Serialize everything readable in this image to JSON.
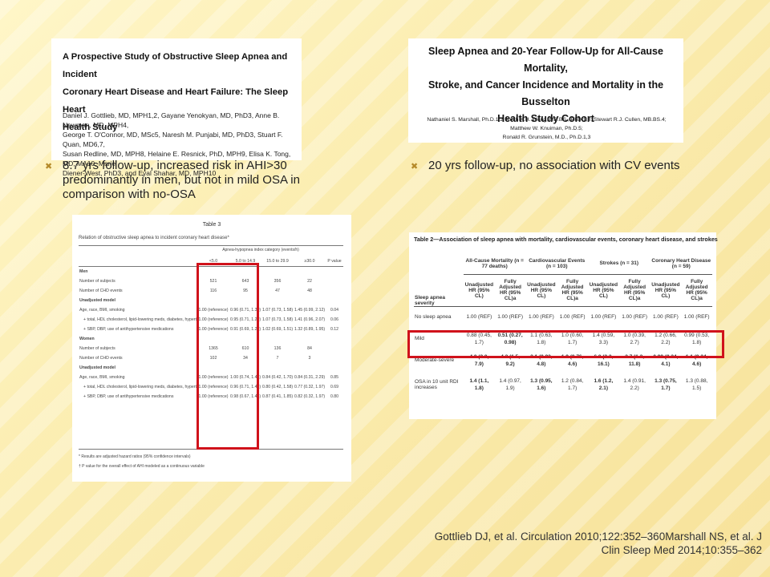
{
  "slide": {
    "paper1": {
      "title_lines": [
        "A Prospective Study of Obstructive Sleep Apnea and Incident",
        "Coronary Heart Disease and Heart Failure: The Sleep Heart",
        "Health Study"
      ],
      "authors": [
        "Daniel J. Gottlieb, MD, MPH1,2, Gayane Yenokyan, MD, PhD3, Anne B. Newman, MD, MPH4,",
        "George T. O'Connor, MD, MSc5, Naresh M. Punjabi, MD, PhD3, Stuart F. Quan, MD6,7,",
        "Susan Redline, MD, MPH8, Helaine E. Resnick, PhD, MPH9, Elisa K. Tong, MD, MA10, Marie",
        "Diener-West, PhD3, and Eyal Shahar, MD, MPH10"
      ]
    },
    "paper2": {
      "title_lines": [
        "Sleep Apnea and 20-Year Follow-Up for All-Cause Mortality,",
        "Stroke, and Cancer Incidence and Mortality in the Busselton",
        "Health Study Cohort"
      ],
      "authors": [
        "Nathaniel S. Marshall, Ph.D.1,2; Keith K.H. Wong, MB.BS., PhD.1,3; Stewart R.J. Cullen, MB.BS.4; Matthew W. Knuiman, Ph.D.5;",
        "Ronald R. Grunstein, M.D., Ph.D.1,3"
      ]
    },
    "bullet_left": [
      "8.7 yrs follow-up, increased risk in AHI>30",
      "predominantly in men, but not in mild OSA in",
      "comparison with no-OSA"
    ],
    "bullet_right": "20 yrs follow-up, no association with CV events",
    "bullet_icon": "x-mark-icon",
    "table3": {
      "title": "Table 3",
      "caption": "Relation of obstructive sleep apnea to incident coronary heart disease*",
      "group_header": "Apnea-hypopnea index category (events/h)",
      "columns": [
        "<5.0",
        "5.0 to 14.9",
        "15.0 to 29.9",
        "≥30.0",
        "P value"
      ],
      "rows": [
        [
          "Men",
          "",
          "",
          "",
          "",
          ""
        ],
        [
          "Number of subjects",
          "521",
          "643",
          "356",
          "22",
          ""
        ],
        [
          "Number of CHD events",
          "116",
          "95",
          "47",
          "48",
          ""
        ],
        [
          "Unadjusted model",
          "",
          "",
          "",
          "",
          ""
        ],
        [
          "Age, race, BMI, smoking",
          "1.00 (reference)",
          "0.96 (0.71, 1.30)",
          "1.07 (0.73, 1.58)",
          "1.45 (0.99, 2.12)",
          "0.04"
        ],
        [
          "+ total, HDL cholesterol, lipid-lowering meds, diabetes, hypertension",
          "1.00 (reference)",
          "0.95 (0.71, 1.29)",
          "1.07 (0.73, 1.58)",
          "1.41 (0.96, 2.07)",
          "0.06"
        ],
        [
          "+ SBP, DBP, use of antihypertensive medications",
          "1.00 (reference)",
          "0.91 (0.69, 1.23)",
          "1.02 (0.69, 1.51)",
          "1.32 (0.89, 1.95)",
          "0.12"
        ],
        [
          "Women",
          "",
          "",
          "",
          "",
          ""
        ],
        [
          "Number of subjects",
          "1365",
          "610",
          "136",
          "84",
          ""
        ],
        [
          "Number of CHD events",
          "102",
          "34",
          "7",
          "3",
          ""
        ],
        [
          "Unadjusted model",
          "",
          "",
          "",
          "",
          ""
        ],
        [
          "Age, race, BMI, smoking",
          "1.00 (reference)",
          "1.00 (0.74, 1.45)",
          "0.84 (0.42, 1.70)",
          "0.84 (0.31, 2.29)",
          "0.85"
        ],
        [
          "+ total, HDL cholesterol, lipid-lowering meds, diabetes, hypertension",
          "1.00 (reference)",
          "0.96 (0.71, 1.43)",
          "0.80 (0.42, 1.58)",
          "0.77 (0.32, 1.97)",
          "0.69"
        ],
        [
          "+ SBP, DBP, use of antihypertensive medications",
          "1.00 (reference)",
          "0.98 (0.67, 1.44)",
          "0.87 (0.41, 1.85)",
          "0.82 (0.32, 1.97)",
          "0.80"
        ]
      ],
      "footnotes": [
        "* Results are adjusted hazard ratios (95% confidence intervals)",
        "† P value for the overall effect of AHI modeled as a continuous variable"
      ]
    },
    "table2": {
      "title": "Table 2—Association of sleep apnea with mortality, cardiovascular events, coronary heart disease, and strokes",
      "groups": [
        "All-Cause Mortality (n = 77 deaths)",
        "Cardiovascular Events (n = 103)",
        "Strokes (n = 31)",
        "Coronary Heart Disease (n = 59)"
      ],
      "subheaders": [
        "Unadjusted HR (95% CL)",
        "Fully Adjusted HR (95% CL)a"
      ],
      "row_label_header": "Sleep apnea severity",
      "rows": [
        {
          "label": "No sleep apnea",
          "values": [
            "1.00 (REF)",
            "1.00 (REF)",
            "1.00 (REF)",
            "1.00 (REF)",
            "1.00 (REF)",
            "1.00 (REF)",
            "1.00 (REF)",
            "1.00 (REF)"
          ]
        },
        {
          "label": "Mild",
          "values": [
            "0.88 (0.45, 1.7)",
            "0.51 (0.27, 0.98)",
            "1.1 (0.63, 1.8)",
            "1.0 (0.60, 1.7)",
            "1.4 (0.59, 3.3)",
            "1.0 (0.39, 2.7)",
            "1.2 (0.66, 2.2)",
            "0.99 (0.53, 1.8)"
          ]
        },
        {
          "label": "Moderate-severe",
          "values": [
            "4.0 (2.0, 7.9)",
            "4.2 (1.5, 9.2)",
            "2.1 (0.92, 4.8)",
            "1.9 (0.76, 4.6)",
            "6.0 (2.2, 16.1)",
            "3.7 (1.2, 11.8)",
            "0.99 (0.24, 4.1)",
            "1.1 (0.24, 4.6)"
          ]
        },
        {
          "label": "OSA in 10 unit RDI increases",
          "values": [
            "1.4 (1.1, 1.8)",
            "1.4 (0.97, 1.9)",
            "1.3 (0.95, 1.6)",
            "1.2 (0.84, 1.7)",
            "1.6 (1.2, 2.1)",
            "1.4 (0.91, 2.2)",
            "1.3 (0.75, 1.7)",
            "1.3 (0.88, 1.5)"
          ]
        }
      ]
    },
    "citation": [
      "Gottlieb DJ, et al. Circulation 2010;122:352–360Marshall NS, et al. J",
      "Clin Sleep Med 2014;10:355–362"
    ],
    "colors": {
      "highlight_box": "#d0121b",
      "bullet_mark": "#b58a2a",
      "background": "#fbedb0"
    }
  }
}
